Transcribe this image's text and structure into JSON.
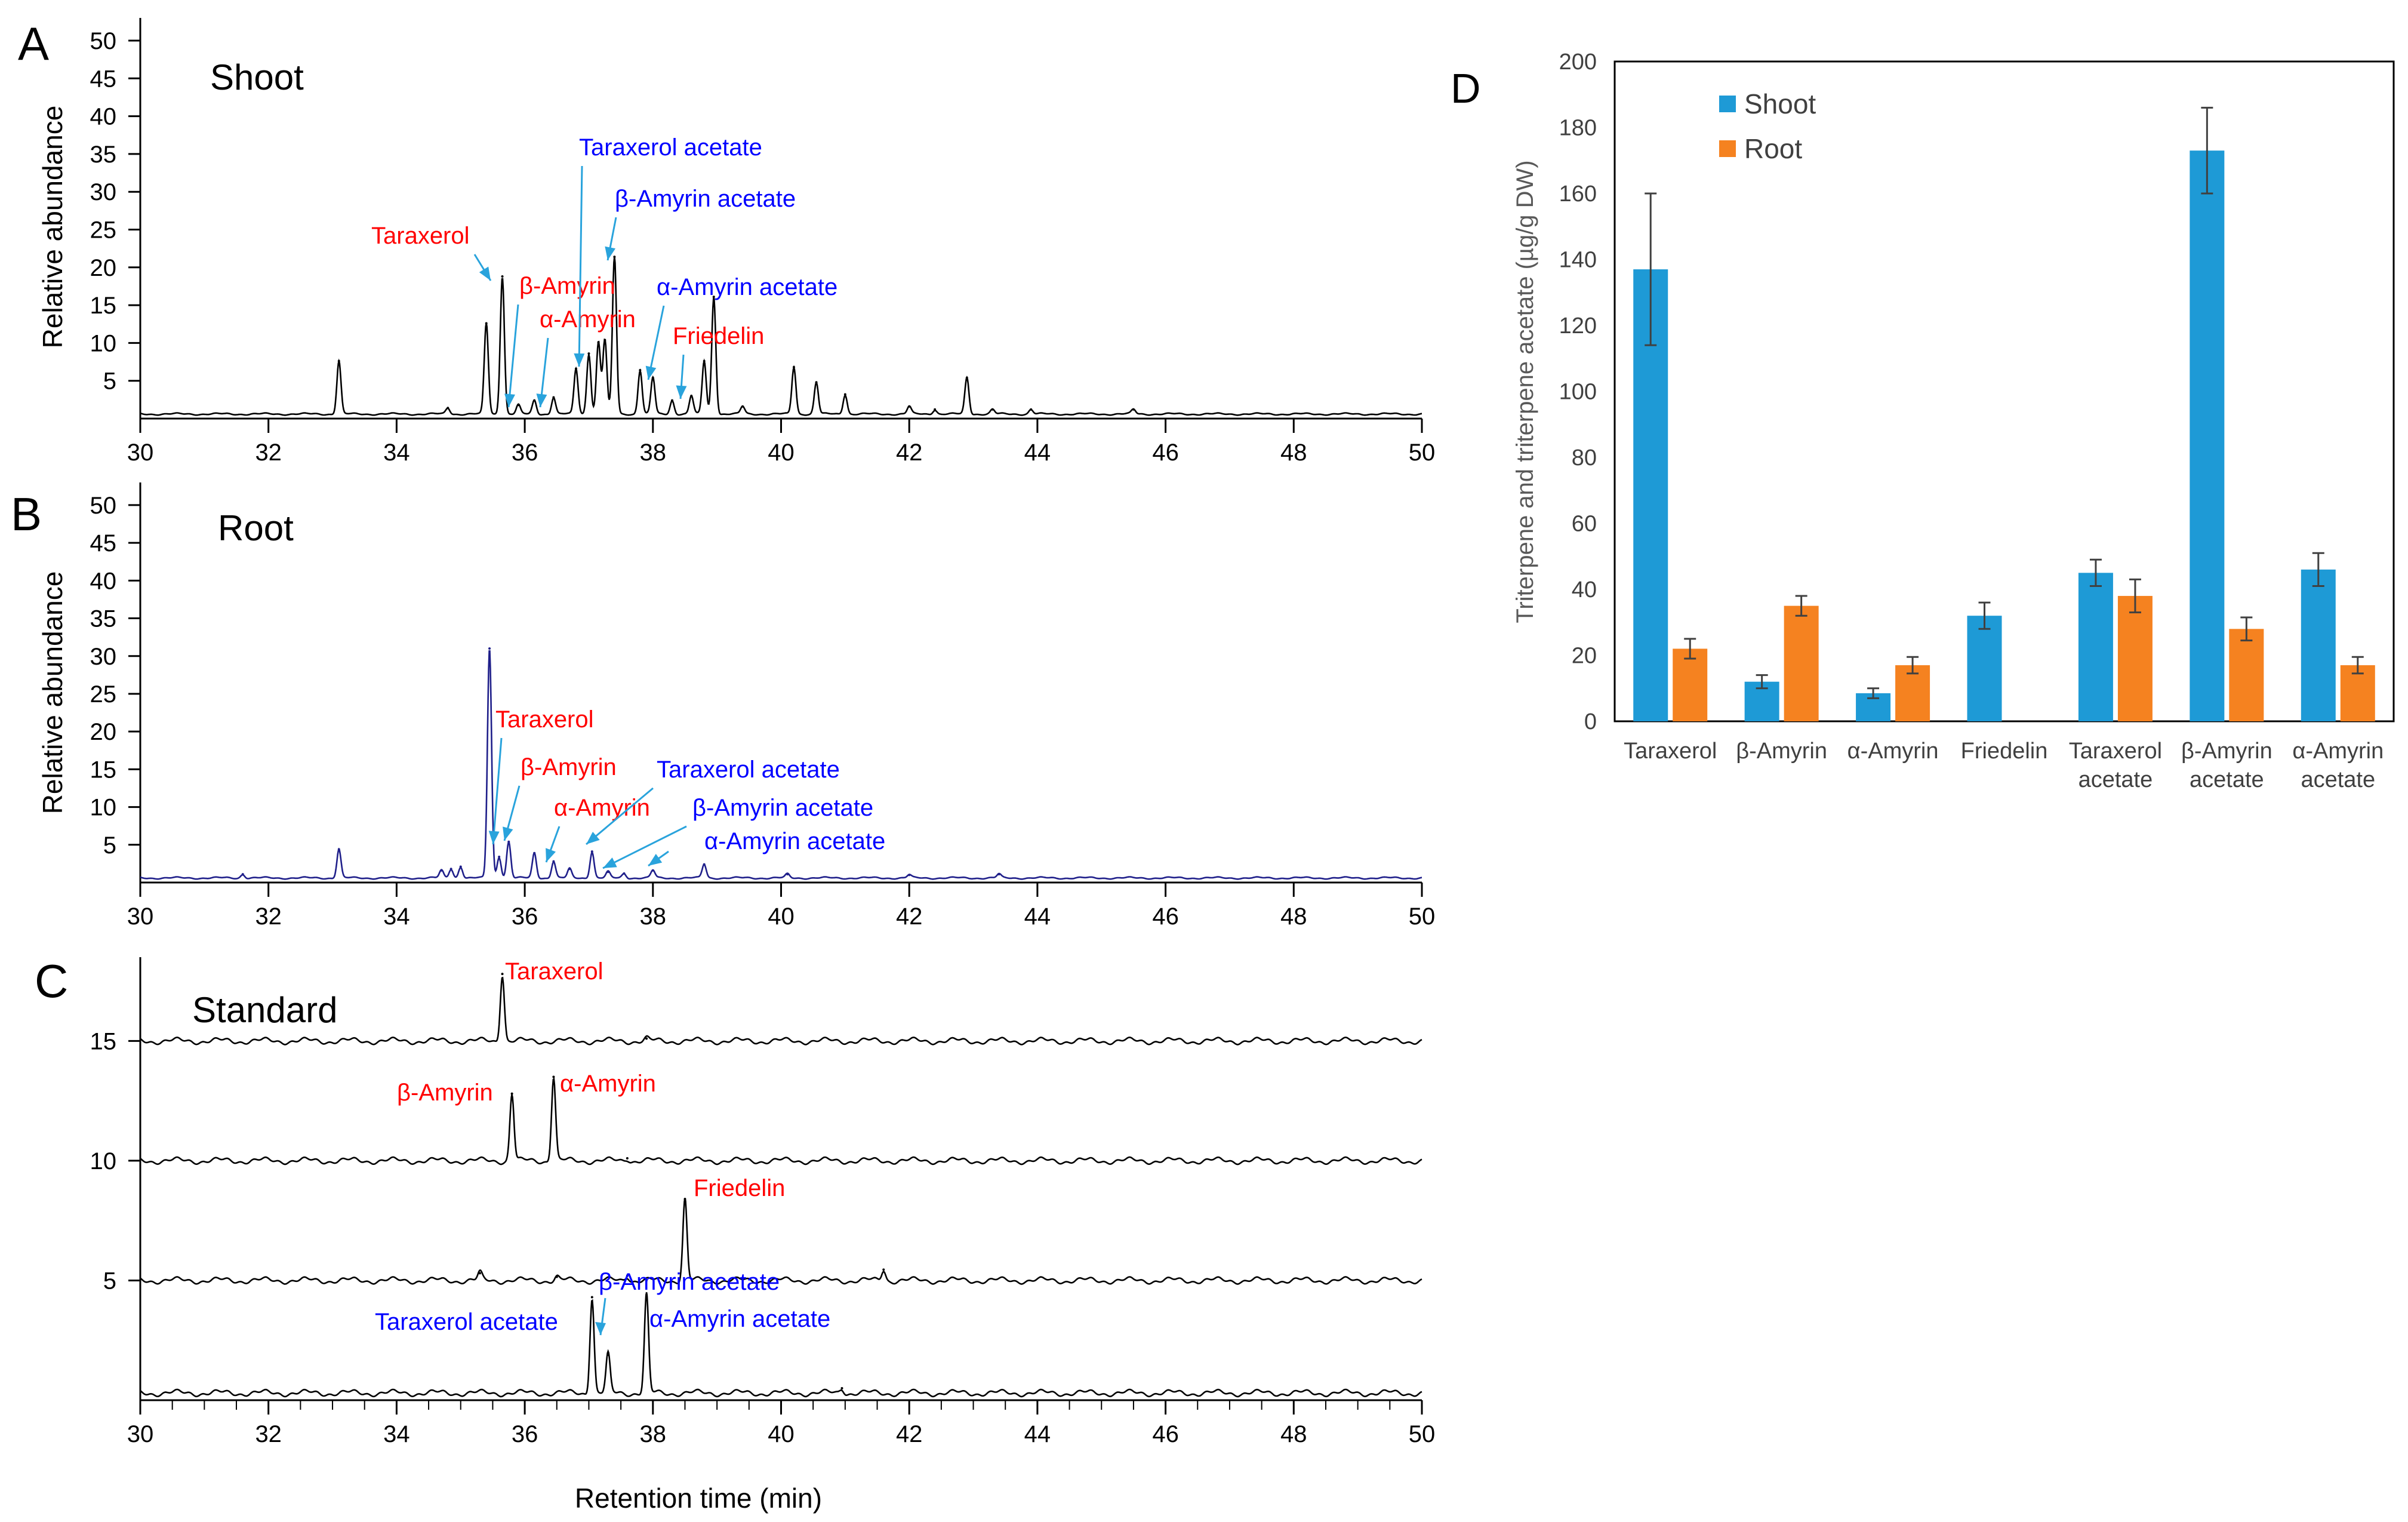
{
  "colors": {
    "shoot_trace": "#000000",
    "root_trace": "#1f1f8a",
    "standard_trace": "#000000",
    "triterpene_label": "#ff0000",
    "acetate_label": "#0000ff",
    "arrow": "#29a3dc",
    "shoot_bar": "#1e9ad6",
    "root_bar": "#f58220",
    "axis": "#000000",
    "tick_label": "#404040"
  },
  "chart_data": [
    {
      "type": "line",
      "panel_letter": "A",
      "title": "Shoot",
      "ylabel": "Relative abundance",
      "xlim": [
        30,
        50
      ],
      "ylim": [
        0,
        53
      ],
      "xticks": [
        "30",
        "32",
        "34",
        "36",
        "38",
        "40",
        "42",
        "44",
        "46",
        "48",
        "50"
      ],
      "yticks": [
        "5",
        "10",
        "15",
        "20",
        "25",
        "30",
        "35",
        "40",
        "45",
        "50"
      ],
      "peaks": [
        {
          "x": 33.1,
          "y": 7.0
        },
        {
          "x": 34.8,
          "y": 0.8
        },
        {
          "x": 35.4,
          "y": 12.0
        },
        {
          "x": 35.65,
          "y": 18.2
        },
        {
          "x": 35.9,
          "y": 1.2
        },
        {
          "x": 36.15,
          "y": 1.8
        },
        {
          "x": 36.45,
          "y": 2.2
        },
        {
          "x": 36.8,
          "y": 6.0
        },
        {
          "x": 37.0,
          "y": 8.0
        },
        {
          "x": 37.15,
          "y": 9.5
        },
        {
          "x": 37.25,
          "y": 9.8
        },
        {
          "x": 37.4,
          "y": 20.8
        },
        {
          "x": 37.8,
          "y": 5.8
        },
        {
          "x": 38.0,
          "y": 4.8
        },
        {
          "x": 38.3,
          "y": 1.8
        },
        {
          "x": 38.6,
          "y": 2.4
        },
        {
          "x": 38.8,
          "y": 7.0
        },
        {
          "x": 38.95,
          "y": 15.5
        },
        {
          "x": 39.4,
          "y": 1.0
        },
        {
          "x": 40.2,
          "y": 6.2
        },
        {
          "x": 40.55,
          "y": 4.2
        },
        {
          "x": 41.0,
          "y": 2.6
        },
        {
          "x": 42.0,
          "y": 1.0
        },
        {
          "x": 42.4,
          "y": 0.6
        },
        {
          "x": 42.9,
          "y": 4.8
        },
        {
          "x": 43.3,
          "y": 0.6
        },
        {
          "x": 43.9,
          "y": 0.6
        },
        {
          "x": 45.5,
          "y": 0.6
        }
      ],
      "annotations": [
        {
          "text": "Taraxerol",
          "kind": "triterpene",
          "x": 35.65
        },
        {
          "text": "β-Amyrin",
          "kind": "triterpene",
          "x": 35.85
        },
        {
          "text": "α-Amyrin",
          "kind": "triterpene",
          "x": 36.4
        },
        {
          "text": "Taraxerol acetate",
          "kind": "acetate",
          "x": 37.05
        },
        {
          "text": "β-Amyrin acetate",
          "kind": "acetate",
          "x": 37.3
        },
        {
          "text": "α-Amyrin acetate",
          "kind": "acetate",
          "x": 37.95
        },
        {
          "text": "Friedelin",
          "kind": "triterpene",
          "x": 38.55
        }
      ]
    },
    {
      "type": "line",
      "panel_letter": "B",
      "title": "Root",
      "ylabel": "Relative abundance",
      "xlim": [
        30,
        50
      ],
      "ylim": [
        0,
        53
      ],
      "xticks": [
        "30",
        "32",
        "34",
        "36",
        "38",
        "40",
        "42",
        "44",
        "46",
        "48",
        "50"
      ],
      "yticks": [
        "5",
        "10",
        "15",
        "20",
        "25",
        "30",
        "35",
        "40",
        "45",
        "50"
      ],
      "peaks": [
        {
          "x": 31.6,
          "y": 0.5
        },
        {
          "x": 33.1,
          "y": 3.8
        },
        {
          "x": 34.7,
          "y": 1.0
        },
        {
          "x": 34.85,
          "y": 1.2
        },
        {
          "x": 35.0,
          "y": 1.5
        },
        {
          "x": 35.45,
          "y": 30.4
        },
        {
          "x": 35.6,
          "y": 2.8
        },
        {
          "x": 35.75,
          "y": 4.8
        },
        {
          "x": 36.15,
          "y": 3.3
        },
        {
          "x": 36.45,
          "y": 2.2
        },
        {
          "x": 36.7,
          "y": 1.2
        },
        {
          "x": 37.05,
          "y": 3.5
        },
        {
          "x": 37.3,
          "y": 0.8
        },
        {
          "x": 37.55,
          "y": 0.6
        },
        {
          "x": 38.0,
          "y": 1.0
        },
        {
          "x": 38.8,
          "y": 1.8
        },
        {
          "x": 40.1,
          "y": 0.5
        },
        {
          "x": 42.0,
          "y": 0.4
        },
        {
          "x": 43.4,
          "y": 0.5
        }
      ],
      "annotations": [
        {
          "text": "Taraxerol",
          "kind": "triterpene",
          "x": 35.6
        },
        {
          "text": "β-Amyrin",
          "kind": "triterpene",
          "x": 35.8
        },
        {
          "text": "α-Amyrin",
          "kind": "triterpene",
          "x": 36.45
        },
        {
          "text": "Taraxerol acetate",
          "kind": "acetate",
          "x": 37.05
        },
        {
          "text": "β-Amyrin acetate",
          "kind": "acetate",
          "x": 37.3
        },
        {
          "text": "α-Amyrin acetate",
          "kind": "acetate",
          "x": 37.95
        }
      ]
    },
    {
      "type": "line",
      "panel_letter": "C",
      "title": "Standard",
      "xlabel": "Retention time (min)",
      "xlim": [
        30,
        50
      ],
      "ylim": [
        0,
        18.5
      ],
      "xticks": [
        "30",
        "32",
        "34",
        "36",
        "38",
        "40",
        "42",
        "44",
        "46",
        "48",
        "50"
      ],
      "yticks": [
        "5",
        "10",
        "15"
      ],
      "traces": [
        {
          "baseline": 15.0,
          "peaks": [
            {
              "x": 35.65,
              "y": 2.8
            },
            {
              "x": 37.9,
              "y": 0.1
            }
          ]
        },
        {
          "baseline": 10.0,
          "peaks": [
            {
              "x": 35.8,
              "y": 2.8
            },
            {
              "x": 36.45,
              "y": 3.5
            },
            {
              "x": 37.6,
              "y": 0.1
            }
          ]
        },
        {
          "baseline": 5.0,
          "peaks": [
            {
              "x": 35.3,
              "y": 0.3
            },
            {
              "x": 36.5,
              "y": 0.15
            },
            {
              "x": 37.6,
              "y": 0.2
            },
            {
              "x": 38.5,
              "y": 3.4
            },
            {
              "x": 41.6,
              "y": 0.45
            }
          ]
        },
        {
          "baseline": 0.3,
          "peaks": [
            {
              "x": 37.05,
              "y": 4.0
            },
            {
              "x": 37.3,
              "y": 1.6
            },
            {
              "x": 37.9,
              "y": 4.1
            },
            {
              "x": 40.95,
              "y": 0.2
            }
          ]
        }
      ],
      "annotations": [
        {
          "text": "Taraxerol",
          "kind": "triterpene",
          "x": 35.65
        },
        {
          "text": "β-Amyrin",
          "kind": "triterpene",
          "x": 35.8
        },
        {
          "text": "α-Amyrin",
          "kind": "triterpene",
          "x": 36.45
        },
        {
          "text": "Friedelin",
          "kind": "triterpene",
          "x": 38.5
        },
        {
          "text": "Taraxerol acetate",
          "kind": "acetate",
          "x": 37.05
        },
        {
          "text": "β-Amyrin acetate",
          "kind": "acetate",
          "x": 37.3
        },
        {
          "text": "α-Amyrin acetate",
          "kind": "acetate",
          "x": 37.9
        }
      ]
    },
    {
      "type": "bar",
      "panel_letter": "D",
      "ylabel": "Triterpene and triterpene acetate (µg/g DW)",
      "ylim": [
        0,
        200
      ],
      "yticks": [
        "0",
        "20",
        "40",
        "60",
        "80",
        "100",
        "120",
        "140",
        "160",
        "180",
        "200"
      ],
      "categories": [
        "Taraxerol",
        "β-Amyrin",
        "α-Amyrin",
        "Friedelin",
        "Taraxerol acetate",
        "β-Amyrin acetate",
        "α-Amyrin acetate"
      ],
      "category_lines": [
        [
          "Taraxerol"
        ],
        [
          "β-Amyrin"
        ],
        [
          "α-Amyrin"
        ],
        [
          "Friedelin"
        ],
        [
          "Taraxerol",
          "acetate"
        ],
        [
          "β-Amyrin",
          "acetate"
        ],
        [
          "α-Amyrin",
          "acetate"
        ]
      ],
      "series": [
        {
          "name": "Shoot",
          "values": [
            137,
            12,
            8.5,
            32,
            45,
            173,
            46
          ],
          "errors": [
            23,
            2,
            1.5,
            4,
            4,
            13,
            5
          ]
        },
        {
          "name": "Root",
          "values": [
            22,
            35,
            17,
            0,
            38,
            28,
            17
          ],
          "errors": [
            3,
            3,
            2.5,
            0,
            5,
            3.5,
            2.5
          ]
        }
      ],
      "legend_position": "top-left"
    }
  ]
}
